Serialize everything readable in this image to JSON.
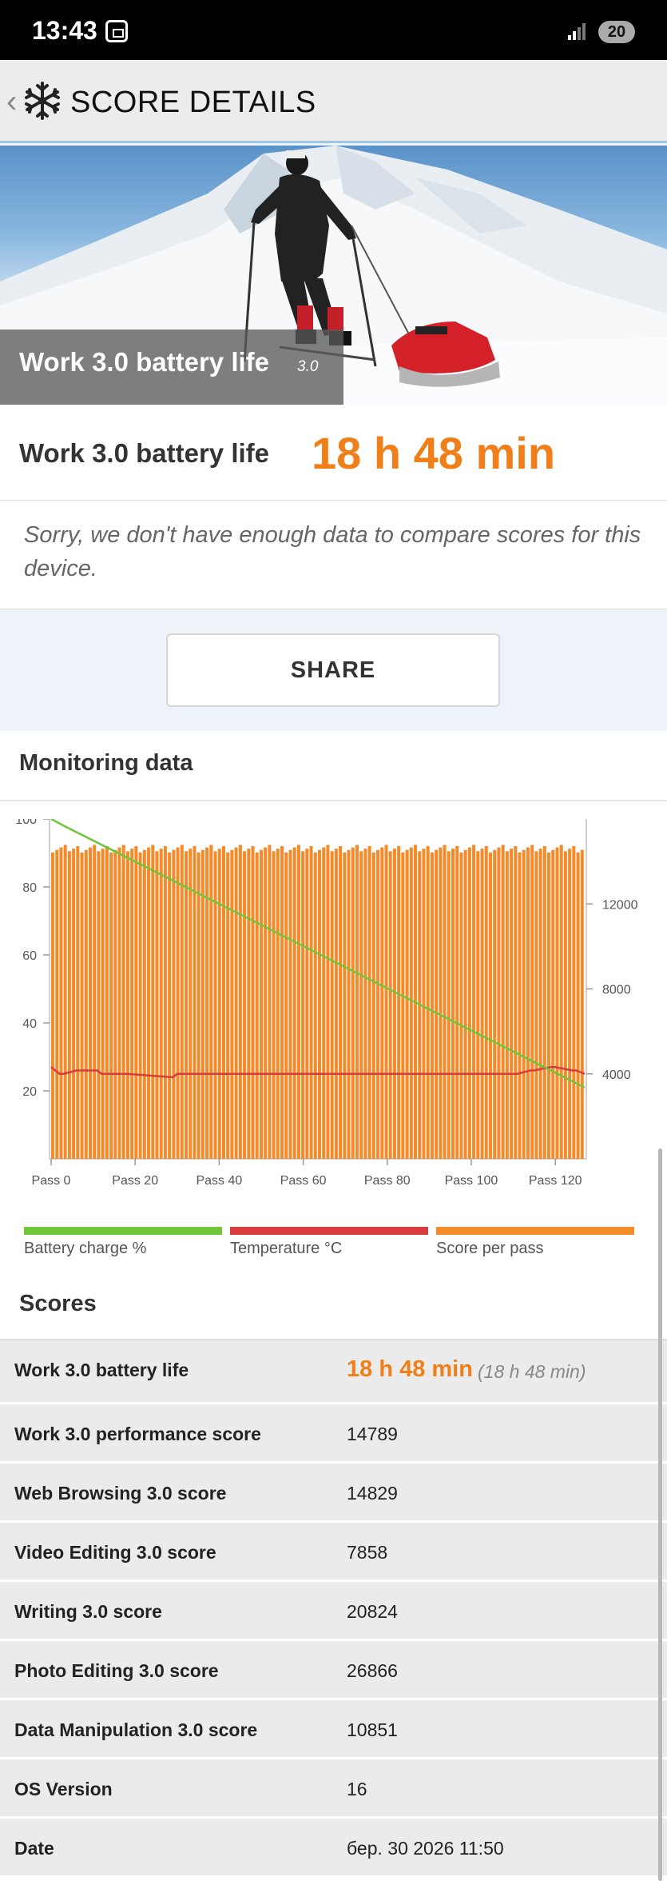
{
  "status_bar": {
    "time": "13:43",
    "battery": "20"
  },
  "app_bar": {
    "title": "SCORE DETAILS"
  },
  "hero": {
    "title": "Work 3.0 battery life",
    "version": "3.0"
  },
  "result": {
    "label": "Work 3.0 battery life",
    "value": "18 h 48 min"
  },
  "notice": {
    "text": "Sorry, we don't have enough data to compare scores for this device."
  },
  "share": {
    "label": "SHARE"
  },
  "monitoring": {
    "title": "Monitoring data"
  },
  "legend": [
    {
      "label": "Battery charge %",
      "color": "#6fc63a"
    },
    {
      "label": "Temperature °C",
      "color": "#d63c3c"
    },
    {
      "label": "Score per pass",
      "color": "#f58a2b"
    }
  ],
  "chart_data": {
    "type": "bar",
    "x_ticks": [
      "Pass 0",
      "Pass 20",
      "Pass 40",
      "Pass 60",
      "Pass 80",
      "Pass 100",
      "Pass 120"
    ],
    "left_ticks": [
      "100",
      "80",
      "60",
      "40",
      "20"
    ],
    "right_ticks": [
      "12000",
      "8000",
      "4000"
    ],
    "left_ylim": [
      0,
      100
    ],
    "right_ylim": [
      0,
      16000
    ],
    "series": [
      {
        "name": "Score per pass",
        "type": "bar",
        "axis": "right",
        "count": 128,
        "approx_value": 14600
      },
      {
        "name": "Battery charge %",
        "type": "line",
        "axis": "left",
        "x": [
          0,
          3,
          127
        ],
        "values": [
          100,
          98,
          21
        ]
      },
      {
        "name": "Temperature °C",
        "type": "line",
        "axis": "left",
        "x": [
          0,
          1,
          2,
          3,
          6,
          11,
          12,
          18,
          29,
          30,
          56,
          89,
          90,
          110,
          111,
          114,
          115,
          119,
          120,
          124,
          125,
          127
        ],
        "values": [
          27,
          26,
          25,
          25,
          26,
          26,
          25,
          25,
          24,
          25,
          25,
          25,
          25,
          25,
          25,
          26,
          26,
          27,
          27,
          26,
          26,
          25
        ]
      }
    ]
  },
  "scores": {
    "title": "Scores",
    "rows": [
      {
        "label": "Work 3.0 battery life",
        "value": "18 h 48 min",
        "sub": "(18 h 48 min)"
      },
      {
        "label": "Work 3.0 performance score",
        "value": "14789"
      },
      {
        "label": "Web Browsing 3.0 score",
        "value": "14829"
      },
      {
        "label": "Video Editing 3.0 score",
        "value": "7858"
      },
      {
        "label": "Writing 3.0 score",
        "value": "20824"
      },
      {
        "label": "Photo Editing 3.0 score",
        "value": "26866"
      },
      {
        "label": "Data Manipulation 3.0 score",
        "value": "10851"
      },
      {
        "label": "OS Version",
        "value": "16"
      },
      {
        "label": "Date",
        "value": "бер. 30 2026 11:50"
      }
    ]
  }
}
